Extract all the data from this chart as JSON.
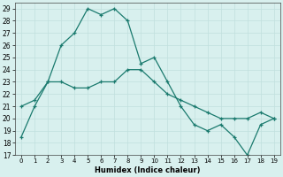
{
  "xlabel": "Humidex (Indice chaleur)",
  "x": [
    0,
    1,
    2,
    3,
    4,
    5,
    6,
    7,
    8,
    9,
    10,
    11,
    12,
    13,
    14,
    15,
    16,
    17,
    18,
    19
  ],
  "line1_y": [
    18.5,
    21,
    23,
    26,
    27,
    29,
    28.5,
    29,
    28,
    24.5,
    25,
    23,
    21,
    19.5,
    19,
    19.5,
    18.5,
    17,
    19.5,
    20
  ],
  "line2_y": [
    21,
    21.5,
    23,
    23,
    22.5,
    22.5,
    23,
    23,
    24,
    24,
    23,
    22,
    21.5,
    21,
    20.5,
    20,
    20,
    20,
    20.5,
    20
  ],
  "line_color": "#1a7a6e",
  "bg_color": "#d8f0ee",
  "grid_major_color": "#c0e0de",
  "grid_minor_color": "#e0f0ee",
  "ylim": [
    17,
    29.5
  ],
  "yticks": [
    17,
    18,
    19,
    20,
    21,
    22,
    23,
    24,
    25,
    26,
    27,
    28,
    29
  ],
  "xlim": [
    -0.5,
    19.5
  ],
  "xticks": [
    0,
    1,
    2,
    3,
    4,
    5,
    6,
    7,
    8,
    9,
    10,
    11,
    12,
    13,
    14,
    15,
    16,
    17,
    18,
    19
  ]
}
